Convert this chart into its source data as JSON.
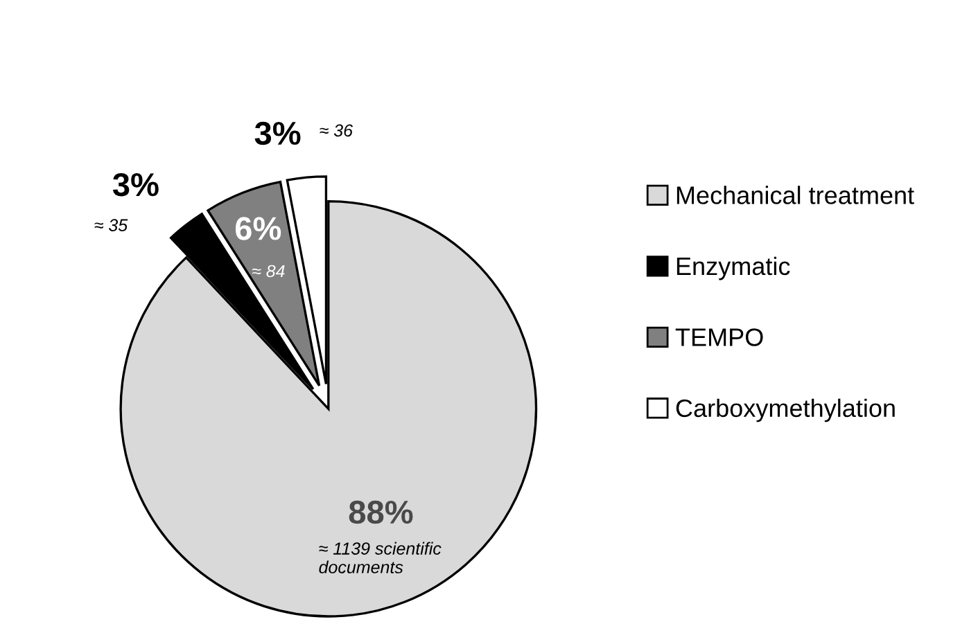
{
  "chart_data": {
    "type": "pie",
    "categories": [
      "Mechanical treatment",
      "Enzymatic",
      "TEMPO",
      "Carboxymethylation"
    ],
    "values": [
      88,
      3,
      6,
      3
    ],
    "colors": [
      "#d9d9d9",
      "#000000",
      "#808080",
      "#ffffff"
    ],
    "value_labels": [
      "88%",
      "3%",
      "6%",
      "3%"
    ],
    "annotations": [
      "≈ 1139 scientific documents",
      "≈ 35",
      "≈ 84",
      "≈ 36"
    ],
    "legend": "right"
  }
}
